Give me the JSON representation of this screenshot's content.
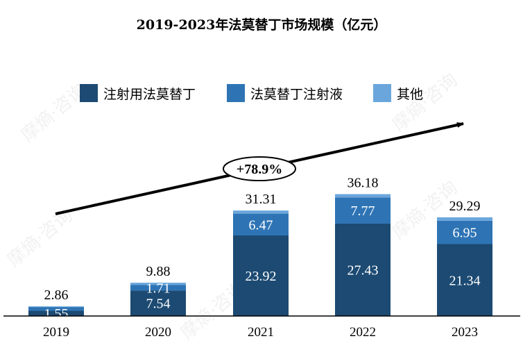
{
  "chart_data": {
    "type": "bar",
    "stacked": true,
    "title": "2019-2023年法莫替丁市场规模（亿元）",
    "categories": [
      "2019",
      "2020",
      "2021",
      "2022",
      "2023"
    ],
    "series": [
      {
        "name": "注射用法莫替丁",
        "color": "#1c4a72",
        "values": [
          1.55,
          7.54,
          23.92,
          27.43,
          21.34
        ]
      },
      {
        "name": "法莫替丁注射液",
        "color": "#2e74b5",
        "values": [
          1.11,
          1.71,
          6.47,
          7.77,
          6.95
        ]
      },
      {
        "name": "其他",
        "color": "#6aa6dc",
        "values": [
          0.2,
          0.63,
          0.92,
          0.98,
          1.0
        ]
      }
    ],
    "segment_labels": [
      [
        "1.55",
        "7.54",
        "23.92",
        "27.43",
        "21.34"
      ],
      [
        "",
        "1.71",
        "6.47",
        "7.77",
        "6.95"
      ],
      [
        "",
        "",
        "",
        "",
        ""
      ]
    ],
    "totals": [
      "2.86",
      "9.88",
      "31.31",
      "36.18",
      "29.29"
    ],
    "growth_annotation": "+78.9%",
    "legend_position": "top",
    "grid": false,
    "ylim": [
      0,
      40
    ]
  },
  "watermark": "摩熵·咨询"
}
